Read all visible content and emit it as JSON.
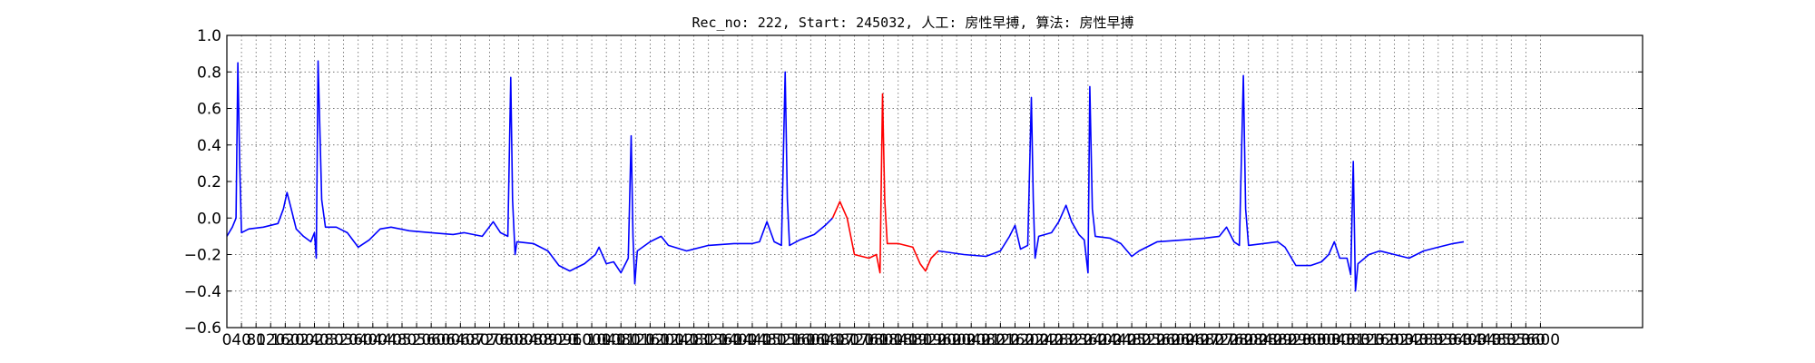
{
  "chart_data": {
    "type": "line",
    "title": "Rec_no: 222, Start: 245032, 人工: 房性早搏, 算法: 房性早搏",
    "xlabel": "",
    "ylabel": "",
    "xlim": [
      0,
      3880
    ],
    "ylim": [
      -0.6,
      1.0
    ],
    "yticks": [
      "1.0",
      "0.8",
      "0.6",
      "0.4",
      "0.2",
      "0.0",
      "−0.2",
      "−0.4",
      "−0.6"
    ],
    "ytick_values": [
      1.0,
      0.8,
      0.6,
      0.4,
      0.2,
      0.0,
      -0.2,
      -0.4,
      -0.6
    ],
    "xtick_step": 40,
    "xtick_max": 3600,
    "grid": true,
    "colors": {
      "normal": "#0000ff",
      "highlight": "#ff0000"
    },
    "series": [
      {
        "color": "normal",
        "points": [
          [
            0,
            -0.1
          ],
          [
            15,
            -0.05
          ],
          [
            25,
            0.0
          ],
          [
            30,
            0.85
          ],
          [
            35,
            0.3
          ],
          [
            40,
            -0.08
          ],
          [
            60,
            -0.06
          ],
          [
            100,
            -0.05
          ],
          [
            140,
            -0.03
          ],
          [
            155,
            0.05
          ],
          [
            165,
            0.14
          ],
          [
            175,
            0.06
          ],
          [
            190,
            -0.06
          ],
          [
            210,
            -0.1
          ],
          [
            230,
            -0.13
          ],
          [
            240,
            -0.08
          ],
          [
            245,
            -0.22
          ],
          [
            250,
            0.86
          ],
          [
            260,
            0.1
          ],
          [
            270,
            -0.05
          ],
          [
            300,
            -0.05
          ],
          [
            330,
            -0.08
          ],
          [
            360,
            -0.16
          ],
          [
            390,
            -0.12
          ],
          [
            420,
            -0.06
          ],
          [
            450,
            -0.05
          ],
          [
            500,
            -0.07
          ],
          [
            560,
            -0.08
          ],
          [
            620,
            -0.09
          ],
          [
            650,
            -0.08
          ],
          [
            700,
            -0.1
          ],
          [
            730,
            -0.02
          ],
          [
            750,
            -0.08
          ],
          [
            770,
            -0.1
          ],
          [
            778,
            0.77
          ],
          [
            783,
            0.1
          ],
          [
            790,
            -0.2
          ],
          [
            795,
            -0.13
          ],
          [
            840,
            -0.14
          ],
          [
            880,
            -0.18
          ],
          [
            910,
            -0.26
          ],
          [
            940,
            -0.29
          ],
          [
            980,
            -0.25
          ],
          [
            1010,
            -0.2
          ],
          [
            1020,
            -0.16
          ],
          [
            1040,
            -0.25
          ],
          [
            1060,
            -0.24
          ],
          [
            1080,
            -0.3
          ],
          [
            1100,
            -0.22
          ],
          [
            1108,
            0.45
          ],
          [
            1113,
            -0.1
          ],
          [
            1118,
            -0.36
          ],
          [
            1125,
            -0.18
          ],
          [
            1160,
            -0.13
          ],
          [
            1190,
            -0.1
          ],
          [
            1210,
            -0.15
          ],
          [
            1260,
            -0.18
          ],
          [
            1320,
            -0.15
          ],
          [
            1390,
            -0.14
          ],
          [
            1440,
            -0.14
          ],
          [
            1460,
            -0.13
          ],
          [
            1480,
            -0.02
          ],
          [
            1500,
            -0.13
          ],
          [
            1520,
            -0.15
          ],
          [
            1530,
            0.8
          ],
          [
            1536,
            0.1
          ],
          [
            1542,
            -0.15
          ],
          [
            1570,
            -0.12
          ],
          [
            1610,
            -0.09
          ],
          [
            1640,
            -0.04
          ],
          [
            1660,
            0.0
          ]
        ]
      },
      {
        "color": "highlight",
        "points": [
          [
            1660,
            0.0
          ],
          [
            1680,
            0.09
          ],
          [
            1700,
            0.0
          ],
          [
            1720,
            -0.2
          ],
          [
            1760,
            -0.22
          ],
          [
            1780,
            -0.2
          ],
          [
            1790,
            -0.3
          ],
          [
            1797,
            0.68
          ],
          [
            1803,
            0.1
          ],
          [
            1810,
            -0.14
          ],
          [
            1840,
            -0.14
          ],
          [
            1880,
            -0.16
          ],
          [
            1900,
            -0.25
          ],
          [
            1915,
            -0.29
          ],
          [
            1930,
            -0.22
          ],
          [
            1950,
            -0.18
          ]
        ]
      },
      {
        "color": "normal",
        "points": [
          [
            1950,
            -0.18
          ],
          [
            2020,
            -0.2
          ],
          [
            2080,
            -0.21
          ],
          [
            2120,
            -0.18
          ],
          [
            2145,
            -0.1
          ],
          [
            2160,
            -0.04
          ],
          [
            2175,
            -0.17
          ],
          [
            2195,
            -0.15
          ],
          [
            2205,
            0.66
          ],
          [
            2210,
            0.1
          ],
          [
            2215,
            -0.22
          ],
          [
            2225,
            -0.1
          ],
          [
            2260,
            -0.08
          ],
          [
            2280,
            -0.02
          ],
          [
            2300,
            0.07
          ],
          [
            2315,
            -0.02
          ],
          [
            2335,
            -0.09
          ],
          [
            2350,
            -0.12
          ],
          [
            2360,
            -0.3
          ],
          [
            2365,
            0.72
          ],
          [
            2372,
            0.05
          ],
          [
            2380,
            -0.1
          ],
          [
            2420,
            -0.11
          ],
          [
            2450,
            -0.14
          ],
          [
            2480,
            -0.21
          ],
          [
            2500,
            -0.18
          ],
          [
            2550,
            -0.13
          ],
          [
            2620,
            -0.12
          ],
          [
            2680,
            -0.11
          ],
          [
            2720,
            -0.1
          ],
          [
            2740,
            -0.05
          ],
          [
            2760,
            -0.13
          ],
          [
            2775,
            -0.15
          ],
          [
            2786,
            0.78
          ],
          [
            2792,
            0.05
          ],
          [
            2800,
            -0.15
          ],
          [
            2840,
            -0.14
          ],
          [
            2880,
            -0.13
          ],
          [
            2900,
            -0.16
          ],
          [
            2930,
            -0.26
          ],
          [
            2970,
            -0.26
          ],
          [
            3000,
            -0.24
          ],
          [
            3020,
            -0.2
          ],
          [
            3035,
            -0.13
          ],
          [
            3050,
            -0.22
          ],
          [
            3070,
            -0.22
          ],
          [
            3080,
            -0.31
          ],
          [
            3087,
            0.31
          ],
          [
            3093,
            -0.4
          ],
          [
            3100,
            -0.25
          ],
          [
            3130,
            -0.2
          ],
          [
            3160,
            -0.18
          ],
          [
            3200,
            -0.2
          ],
          [
            3240,
            -0.22
          ],
          [
            3280,
            -0.18
          ],
          [
            3320,
            -0.16
          ],
          [
            3360,
            -0.14
          ],
          [
            3390,
            -0.13
          ]
        ]
      }
    ]
  }
}
